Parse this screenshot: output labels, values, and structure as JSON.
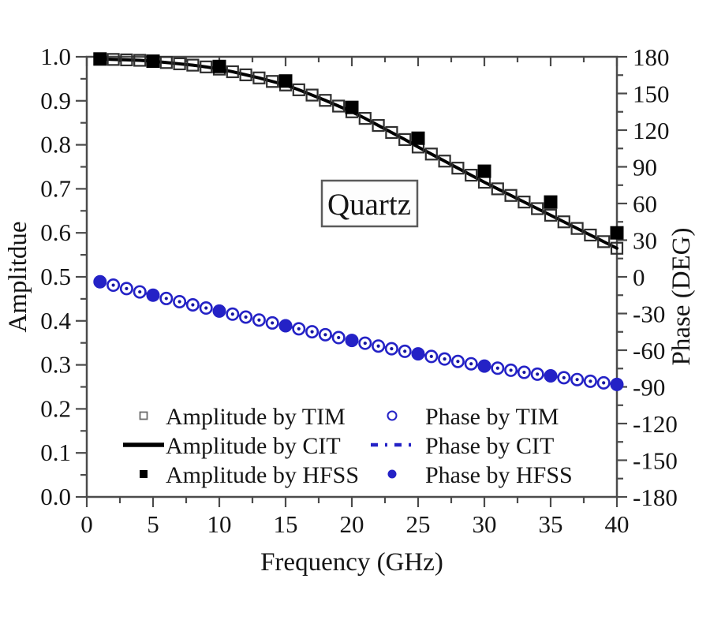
{
  "figure": {
    "material_label": "Quartz",
    "xlabel": "Frequency (GHz)",
    "ylabel_left": "Amplitdue",
    "ylabel_right": "Phase (DEG)"
  },
  "colors": {
    "amplitude": "#000000",
    "square_stroke": "#2f2f2f",
    "phase_blue": "#2422c6",
    "phase_dot": "#15159e",
    "axis": "#4b4b4b",
    "text": "#151515",
    "background": "#ffffff"
  },
  "chart_data": {
    "type": "line",
    "title": "Quartz",
    "xlabel": "Frequency (GHz)",
    "ylabel_left": "Amplitdue",
    "ylabel_right": "Phase (DEG)",
    "x_range": [
      0,
      40
    ],
    "x_major_tick_values": [
      0,
      5,
      10,
      15,
      20,
      25,
      30,
      35,
      40
    ],
    "x_major_tick_labels": [
      "0",
      "5",
      "10",
      "15",
      "20",
      "25",
      "30",
      "35",
      "40"
    ],
    "x_minor_tick_values": [
      2.5,
      7.5,
      12.5,
      17.5,
      22.5,
      27.5,
      32.5,
      37.5
    ],
    "left_range": [
      0.0,
      1.0
    ],
    "left_major_tick_values": [
      1.0,
      0.9,
      0.8,
      0.7,
      0.6,
      0.5,
      0.4,
      0.3,
      0.2,
      0.1,
      0.0
    ],
    "left_major_tick_labels": [
      "1.0",
      "0.9",
      "0.8",
      "0.7",
      "0.6",
      "0.5",
      "0.4",
      "0.3",
      "0.2",
      "0.1",
      "0.0"
    ],
    "left_minor_tick_values": [
      0.95,
      0.85,
      0.75,
      0.65,
      0.55,
      0.45,
      0.35,
      0.25,
      0.15,
      0.05
    ],
    "right_range": [
      -180,
      180
    ],
    "right_major_tick_values": [
      180,
      150,
      120,
      90,
      60,
      30,
      0,
      -30,
      -60,
      -90,
      -120,
      -150,
      -180
    ],
    "right_major_tick_labels": [
      "180",
      "150",
      "120",
      "90",
      "60",
      "30",
      "0",
      "-30",
      "-60",
      "-90",
      "-120",
      "-150",
      "-180"
    ],
    "right_minor_tick_values": [
      165,
      135,
      105,
      75,
      45,
      15,
      -15,
      -45,
      -75,
      -105,
      -135,
      -165
    ],
    "grid": false,
    "legend_position": "inside-bottom",
    "series": [
      {
        "name": "Amplitude by TIM",
        "axis": "left",
        "style": "open-square",
        "x": [
          1,
          2,
          3,
          4,
          5,
          6,
          7,
          8,
          9,
          10,
          11,
          12,
          13,
          14,
          15,
          16,
          17,
          18,
          19,
          20,
          21,
          22,
          23,
          24,
          25,
          26,
          27,
          28,
          29,
          30,
          31,
          32,
          33,
          34,
          35,
          36,
          37,
          38,
          39,
          40
        ],
        "values": [
          0.995,
          0.994,
          0.993,
          0.992,
          0.99,
          0.987,
          0.984,
          0.981,
          0.977,
          0.972,
          0.966,
          0.959,
          0.952,
          0.944,
          0.936,
          0.925,
          0.913,
          0.901,
          0.888,
          0.875,
          0.86,
          0.844,
          0.828,
          0.812,
          0.795,
          0.779,
          0.763,
          0.747,
          0.731,
          0.715,
          0.7,
          0.685,
          0.67,
          0.655,
          0.64,
          0.625,
          0.61,
          0.595,
          0.58,
          0.565
        ]
      },
      {
        "name": "Amplitude by CIT",
        "axis": "left",
        "style": "solid-line",
        "x": [
          1,
          2,
          3,
          4,
          5,
          6,
          7,
          8,
          9,
          10,
          11,
          12,
          13,
          14,
          15,
          16,
          17,
          18,
          19,
          20,
          21,
          22,
          23,
          24,
          25,
          26,
          27,
          28,
          29,
          30,
          31,
          32,
          33,
          34,
          35,
          36,
          37,
          38,
          39,
          40
        ],
        "values": [
          0.995,
          0.994,
          0.993,
          0.992,
          0.99,
          0.987,
          0.984,
          0.981,
          0.977,
          0.972,
          0.966,
          0.959,
          0.952,
          0.944,
          0.936,
          0.925,
          0.913,
          0.901,
          0.888,
          0.875,
          0.86,
          0.844,
          0.828,
          0.812,
          0.795,
          0.779,
          0.763,
          0.747,
          0.731,
          0.715,
          0.7,
          0.685,
          0.67,
          0.655,
          0.64,
          0.625,
          0.61,
          0.595,
          0.58,
          0.565
        ]
      },
      {
        "name": "Amplitude by HFSS",
        "axis": "left",
        "style": "filled-square",
        "x": [
          1,
          5,
          10,
          15,
          20,
          25,
          30,
          35,
          40
        ],
        "values": [
          0.995,
          0.99,
          0.978,
          0.945,
          0.885,
          0.815,
          0.74,
          0.67,
          0.6
        ]
      },
      {
        "name": "Phase by TIM",
        "axis": "right",
        "style": "open-circle",
        "x": [
          1,
          2,
          3,
          4,
          5,
          6,
          7,
          8,
          9,
          10,
          11,
          12,
          13,
          14,
          15,
          16,
          17,
          18,
          19,
          20,
          21,
          22,
          23,
          24,
          25,
          26,
          27,
          28,
          29,
          30,
          31,
          32,
          33,
          34,
          35,
          36,
          37,
          38,
          39,
          40
        ],
        "values": [
          -4.0,
          -6.8,
          -9.6,
          -12.3,
          -15.0,
          -17.7,
          -20.3,
          -22.9,
          -25.5,
          -28.0,
          -30.5,
          -32.9,
          -35.3,
          -37.7,
          -40.0,
          -42.5,
          -44.9,
          -47.3,
          -49.7,
          -52.0,
          -54.3,
          -56.6,
          -58.8,
          -60.9,
          -63.0,
          -65.1,
          -67.2,
          -69.2,
          -71.1,
          -73.0,
          -74.7,
          -76.4,
          -78.1,
          -79.6,
          -81.0,
          -82.5,
          -84.0,
          -85.4,
          -86.7,
          -88.0
        ]
      },
      {
        "name": "Phase by CIT",
        "axis": "right",
        "style": "dotted-line",
        "x": [
          1,
          2,
          3,
          4,
          5,
          6,
          7,
          8,
          9,
          10,
          11,
          12,
          13,
          14,
          15,
          16,
          17,
          18,
          19,
          20,
          21,
          22,
          23,
          24,
          25,
          26,
          27,
          28,
          29,
          30,
          31,
          32,
          33,
          34,
          35,
          36,
          37,
          38,
          39,
          40
        ],
        "values": [
          -4.0,
          -6.8,
          -9.6,
          -12.3,
          -15.0,
          -17.7,
          -20.3,
          -22.9,
          -25.5,
          -28.0,
          -30.5,
          -32.9,
          -35.3,
          -37.7,
          -40.0,
          -42.5,
          -44.9,
          -47.3,
          -49.7,
          -52.0,
          -54.3,
          -56.6,
          -58.8,
          -60.9,
          -63.0,
          -65.1,
          -67.2,
          -69.2,
          -71.1,
          -73.0,
          -74.7,
          -76.4,
          -78.1,
          -79.6,
          -81.0,
          -82.5,
          -84.0,
          -85.4,
          -86.7,
          -88.0
        ]
      },
      {
        "name": "Phase by HFSS",
        "axis": "right",
        "style": "filled-circle",
        "x": [
          1,
          5,
          10,
          15,
          20,
          25,
          30,
          35,
          40
        ],
        "values": [
          -4.0,
          -15.0,
          -28.0,
          -40.0,
          -52.0,
          -63.0,
          -73.0,
          -81.0,
          -88.0
        ]
      }
    ],
    "legend_columns": [
      [
        0,
        1,
        2
      ],
      [
        3,
        4,
        5
      ]
    ]
  }
}
